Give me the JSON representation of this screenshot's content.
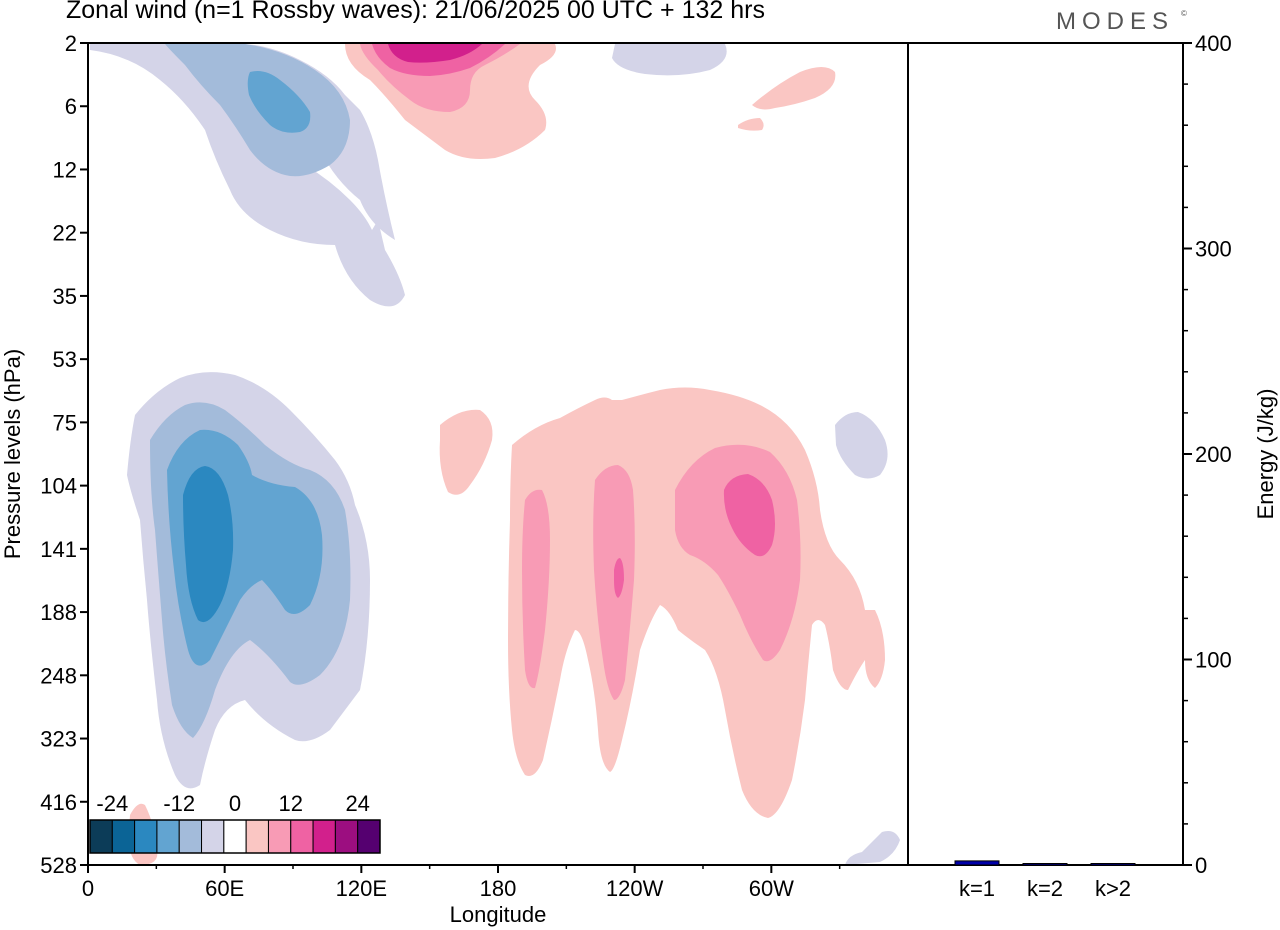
{
  "title": "Zonal wind (n=1 Rossby waves):  21/06/2025  00 UTC  + 132 hrs",
  "brand": "MODES",
  "brand_mark": "©",
  "chart_data": [
    {
      "type": "heatmap",
      "xlabel": "Longitude",
      "ylabel": "Pressure levels (hPa)",
      "x_ticks": [
        "0",
        "60E",
        "120E",
        "180",
        "120W",
        "60W"
      ],
      "y_ticks": [
        "2",
        "6",
        "12",
        "22",
        "35",
        "53",
        "75",
        "104",
        "141",
        "188",
        "248",
        "323",
        "416",
        "528"
      ],
      "colorbar": {
        "tick_labels": [
          "-24",
          "-12",
          "0",
          "12",
          "24"
        ],
        "colors": [
          "#0c3c58",
          "#0b6496",
          "#2b88c0",
          "#62a4d1",
          "#a3bbda",
          "#d4d4e8",
          "#ffffff",
          "#fac6c3",
          "#f89bb5",
          "#ef62a3",
          "#d2208c",
          "#9c0e80",
          "#550070"
        ]
      },
      "contours": [
        {
          "name": "upper-negative-region",
          "level": "-4",
          "color": "#d4d4e8"
        },
        {
          "name": "upper-negative-core",
          "level": "-8",
          "color": "#a3bbda"
        },
        {
          "name": "upper-negative-center",
          "level": "-12",
          "color": "#62a4d1"
        },
        {
          "name": "upper-positive-region",
          "level": "4",
          "color": "#fac6c3"
        },
        {
          "name": "upper-positive-core",
          "level": "8",
          "color": "#f89bb5"
        },
        {
          "name": "upper-positive-center",
          "level": "12",
          "color": "#ef62a3"
        },
        {
          "name": "upper-positive-peak",
          "level": "16",
          "color": "#d2208c"
        },
        {
          "name": "lower-negative-region",
          "level": "-4",
          "color": "#d4d4e8"
        },
        {
          "name": "lower-negative-core",
          "level": "-8",
          "color": "#a3bbda"
        },
        {
          "name": "lower-negative-center",
          "level": "-12",
          "color": "#62a4d1"
        },
        {
          "name": "lower-negative-peak",
          "level": "-16",
          "color": "#2b88c0"
        },
        {
          "name": "lower-positive-region",
          "level": "4",
          "color": "#fac6c3"
        },
        {
          "name": "lower-positive-core",
          "level": "8",
          "color": "#f89bb5"
        },
        {
          "name": "lower-positive-center",
          "level": "12",
          "color": "#ef62a3"
        }
      ]
    },
    {
      "type": "bar",
      "ylabel": "Energy (J/kg)",
      "categories": [
        "k=1",
        "k=2",
        "k>2"
      ],
      "values": [
        2,
        0.5,
        0.7
      ],
      "ylim": [
        0,
        400
      ],
      "y_ticks": [
        "0",
        "100",
        "200",
        "300",
        "400"
      ],
      "bar_color": "#0000aa"
    }
  ]
}
